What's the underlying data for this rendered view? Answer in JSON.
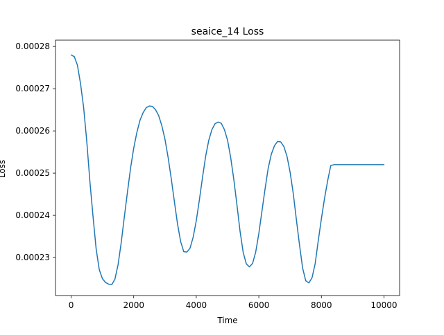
{
  "chart_data": {
    "type": "line",
    "title": "seaice_14 Loss",
    "xlabel": "Time",
    "ylabel": "Loss",
    "xlim": [
      -500,
      10500
    ],
    "ylim": [
      0.000221,
      0.0002815
    ],
    "xticks": [
      0,
      2000,
      4000,
      6000,
      8000,
      10000
    ],
    "xtick_labels": [
      "0",
      "2000",
      "4000",
      "6000",
      "8000",
      "10000"
    ],
    "yticks": [
      0.00023,
      0.00024,
      0.00025,
      0.00026,
      0.00027,
      0.00028
    ],
    "ytick_labels": [
      "0.00023",
      "0.00024",
      "0.00025",
      "0.00026",
      "0.00027",
      "0.00028"
    ],
    "grid": false,
    "legend": "none",
    "series": [
      {
        "color": "#1f77b4",
        "x": [
          0,
          100,
          200,
          300,
          400,
          500,
          600,
          700,
          800,
          900,
          1000,
          1100,
          1200,
          1300,
          1400,
          1500,
          1600,
          1700,
          1800,
          1900,
          2000,
          2100,
          2200,
          2300,
          2400,
          2500,
          2600,
          2700,
          2800,
          2900,
          3000,
          3100,
          3200,
          3300,
          3400,
          3500,
          3600,
          3700,
          3800,
          3900,
          4000,
          4100,
          4200,
          4300,
          4400,
          4500,
          4600,
          4700,
          4800,
          4900,
          5000,
          5100,
          5200,
          5300,
          5400,
          5500,
          5600,
          5700,
          5800,
          5900,
          6000,
          6100,
          6200,
          6300,
          6400,
          6500,
          6600,
          6700,
          6800,
          6900,
          7000,
          7100,
          7200,
          7300,
          7400,
          7500,
          7600,
          7700,
          7800,
          7900,
          8000,
          8100,
          8200,
          8300,
          8400,
          8500,
          8600,
          8700,
          8800,
          8900,
          9000,
          9100,
          9200,
          9300,
          9400,
          9500,
          9600,
          9700,
          9800,
          9900,
          10000
        ],
        "y": [
          0.000278,
          0.0002776,
          0.0002756,
          0.0002712,
          0.0002655,
          0.0002575,
          0.000248,
          0.0002397,
          0.000232,
          0.0002271,
          0.000225,
          0.0002241,
          0.0002237,
          0.0002236,
          0.0002249,
          0.0002283,
          0.0002335,
          0.0002396,
          0.0002455,
          0.0002512,
          0.0002559,
          0.0002596,
          0.0002625,
          0.0002643,
          0.0002655,
          0.0002659,
          0.0002658,
          0.000265,
          0.0002636,
          0.0002612,
          0.000258,
          0.0002537,
          0.0002487,
          0.0002433,
          0.000238,
          0.0002338,
          0.0002314,
          0.0002313,
          0.0002322,
          0.0002348,
          0.0002387,
          0.0002437,
          0.000249,
          0.000254,
          0.0002578,
          0.0002603,
          0.0002617,
          0.0002621,
          0.0002618,
          0.0002603,
          0.0002578,
          0.0002537,
          0.0002485,
          0.0002425,
          0.0002362,
          0.0002312,
          0.0002285,
          0.0002278,
          0.0002286,
          0.0002313,
          0.0002357,
          0.000241,
          0.0002463,
          0.0002512,
          0.0002545,
          0.0002565,
          0.0002575,
          0.0002574,
          0.0002563,
          0.000254,
          0.0002502,
          0.0002452,
          0.000239,
          0.000233,
          0.0002275,
          0.0002245,
          0.000224,
          0.0002252,
          0.0002285,
          0.000234,
          0.0002392,
          0.000244,
          0.0002482,
          0.0002518,
          0.000252,
          0.000252,
          0.000252,
          0.000252,
          0.000252,
          0.000252,
          0.000252,
          0.000252,
          0.000252,
          0.000252,
          0.000252,
          0.000252,
          0.000252,
          0.000252,
          0.000252,
          0.000252,
          0.000252
        ]
      }
    ]
  }
}
